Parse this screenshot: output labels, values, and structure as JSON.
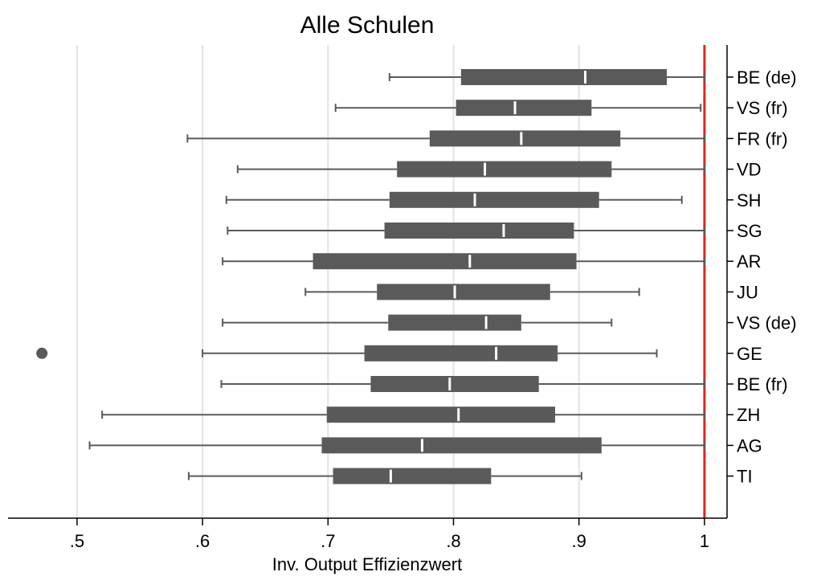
{
  "chart_data": {
    "type": "boxplot",
    "orientation": "horizontal",
    "title": "Alle Schulen",
    "xlabel": "Inv. Output Effizienzwert",
    "xlim": [
      0.445,
      1.018
    ],
    "xticks": [
      0.5,
      0.6,
      0.7,
      0.8,
      0.9,
      1.0
    ],
    "xtick_labels": [
      ".5",
      ".6",
      ".7",
      ".8",
      ".9",
      "1"
    ],
    "grid": "vertical",
    "reference_line": {
      "x": 1.0,
      "color": "#e8231a"
    },
    "box_color": "#5a5a5a",
    "median_color": "#ffffff",
    "categories": [
      "BE (de)",
      "VS (fr)",
      "FR (fr)",
      "VD",
      "SH",
      "SG",
      "AR",
      "JU",
      "VS (de)",
      "GE",
      "BE (fr)",
      "ZH",
      "AG",
      "TI"
    ],
    "boxes": [
      {
        "label": "BE (de)",
        "whisker_low": 0.749,
        "q1": 0.806,
        "median": 0.905,
        "q3": 0.97,
        "whisker_high": 1.0,
        "outliers": []
      },
      {
        "label": "VS (fr)",
        "whisker_low": 0.706,
        "q1": 0.802,
        "median": 0.849,
        "q3": 0.91,
        "whisker_high": 0.997,
        "outliers": []
      },
      {
        "label": "FR (fr)",
        "whisker_low": 0.588,
        "q1": 0.781,
        "median": 0.854,
        "q3": 0.933,
        "whisker_high": 1.0,
        "outliers": []
      },
      {
        "label": "VD",
        "whisker_low": 0.628,
        "q1": 0.755,
        "median": 0.825,
        "q3": 0.926,
        "whisker_high": 1.0,
        "outliers": []
      },
      {
        "label": "SH",
        "whisker_low": 0.619,
        "q1": 0.749,
        "median": 0.817,
        "q3": 0.916,
        "whisker_high": 0.982,
        "outliers": []
      },
      {
        "label": "SG",
        "whisker_low": 0.62,
        "q1": 0.745,
        "median": 0.84,
        "q3": 0.896,
        "whisker_high": 1.0,
        "outliers": []
      },
      {
        "label": "AR",
        "whisker_low": 0.616,
        "q1": 0.688,
        "median": 0.813,
        "q3": 0.898,
        "whisker_high": 1.0,
        "outliers": []
      },
      {
        "label": "JU",
        "whisker_low": 0.682,
        "q1": 0.739,
        "median": 0.801,
        "q3": 0.877,
        "whisker_high": 0.948,
        "outliers": []
      },
      {
        "label": "VS (de)",
        "whisker_low": 0.616,
        "q1": 0.748,
        "median": 0.826,
        "q3": 0.854,
        "whisker_high": 0.926,
        "outliers": []
      },
      {
        "label": "GE",
        "whisker_low": 0.6,
        "q1": 0.729,
        "median": 0.834,
        "q3": 0.883,
        "whisker_high": 0.962,
        "outliers": [
          0.472
        ]
      },
      {
        "label": "BE (fr)",
        "whisker_low": 0.615,
        "q1": 0.734,
        "median": 0.797,
        "q3": 0.868,
        "whisker_high": 1.0,
        "outliers": []
      },
      {
        "label": "ZH",
        "whisker_low": 0.52,
        "q1": 0.699,
        "median": 0.804,
        "q3": 0.881,
        "whisker_high": 1.0,
        "outliers": []
      },
      {
        "label": "AG",
        "whisker_low": 0.51,
        "q1": 0.695,
        "median": 0.775,
        "q3": 0.918,
        "whisker_high": 1.0,
        "outliers": []
      },
      {
        "label": "TI",
        "whisker_low": 0.589,
        "q1": 0.704,
        "median": 0.75,
        "q3": 0.83,
        "whisker_high": 0.902,
        "outliers": []
      }
    ]
  }
}
